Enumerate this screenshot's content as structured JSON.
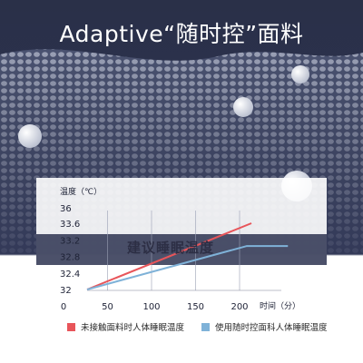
{
  "headline": "Adaptive“随时控”面料",
  "chart_data": {
    "type": "line",
    "title": "",
    "ylabel": "温度（℃）",
    "xlabel": "时间（分）",
    "x_ticks": [
      0,
      50,
      100,
      150,
      200
    ],
    "y_ticks": [
      32,
      32.4,
      32.8,
      33.2,
      33.6,
      36
    ],
    "y_tick_labels": [
      "32",
      "32.4",
      "32.8",
      "33.2",
      "33.6",
      "36"
    ],
    "xlim": [
      0,
      240
    ],
    "series": [
      {
        "name": "未接触面料时人体睡眠温度",
        "color": "#e8555a",
        "x": [
          25,
          205
        ],
        "y": [
          32,
          33.6
        ]
      },
      {
        "name": "使用随时控面科人体睡眠温度",
        "color": "#7fb2d8",
        "x": [
          25,
          200,
          245
        ],
        "y": [
          32,
          33.05,
          33.05
        ]
      }
    ],
    "annotation": "建议睡眠温度",
    "legend_position": "bottom"
  }
}
